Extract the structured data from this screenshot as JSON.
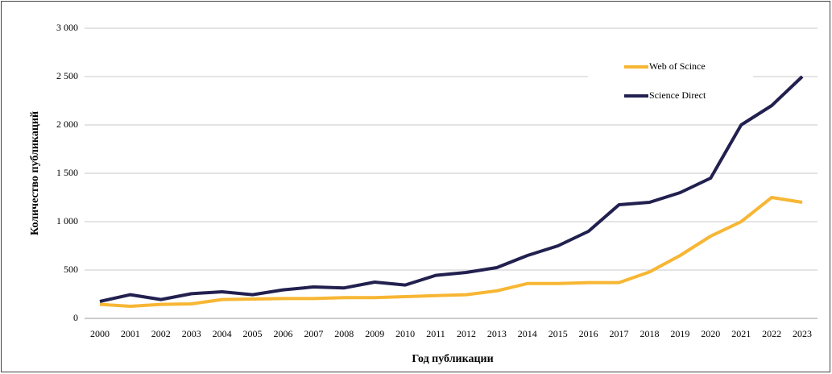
{
  "chart_data": {
    "type": "line",
    "xlabel": "Год публикации",
    "ylabel": "Количество публикаций",
    "categories": [
      "2000",
      "2001",
      "2002",
      "2003",
      "2004",
      "2005",
      "2006",
      "2007",
      "2008",
      "2009",
      "2010",
      "2011",
      "2012",
      "2013",
      "2014",
      "2015",
      "2016",
      "2017",
      "2018",
      "2019",
      "2020",
      "2021",
      "2022",
      "2023"
    ],
    "series": [
      {
        "name": "Web of Scince",
        "color": "#f7b633",
        "values": [
          145,
          125,
          145,
          150,
          195,
          200,
          205,
          205,
          215,
          215,
          225,
          235,
          245,
          285,
          360,
          360,
          370,
          370,
          480,
          650,
          850,
          1000,
          1250,
          1200
        ]
      },
      {
        "name": "Science Direct",
        "color": "#22204f",
        "values": [
          175,
          245,
          195,
          255,
          275,
          245,
          295,
          325,
          315,
          375,
          345,
          445,
          475,
          525,
          650,
          750,
          900,
          1175,
          1200,
          1300,
          1450,
          2000,
          2200,
          2500
        ]
      }
    ],
    "ylim": [
      0,
      3000
    ],
    "yticks": [
      0,
      500,
      {
        "value": 1000,
        "label": "1 000"
      },
      {
        "value": 1500,
        "label": "1 500"
      },
      {
        "value": 2000,
        "label": "2 000"
      },
      {
        "value": 2500,
        "label": "2 500"
      },
      {
        "value": 3000,
        "label": "3 000"
      }
    ],
    "grid": true,
    "legend": "upper right"
  }
}
